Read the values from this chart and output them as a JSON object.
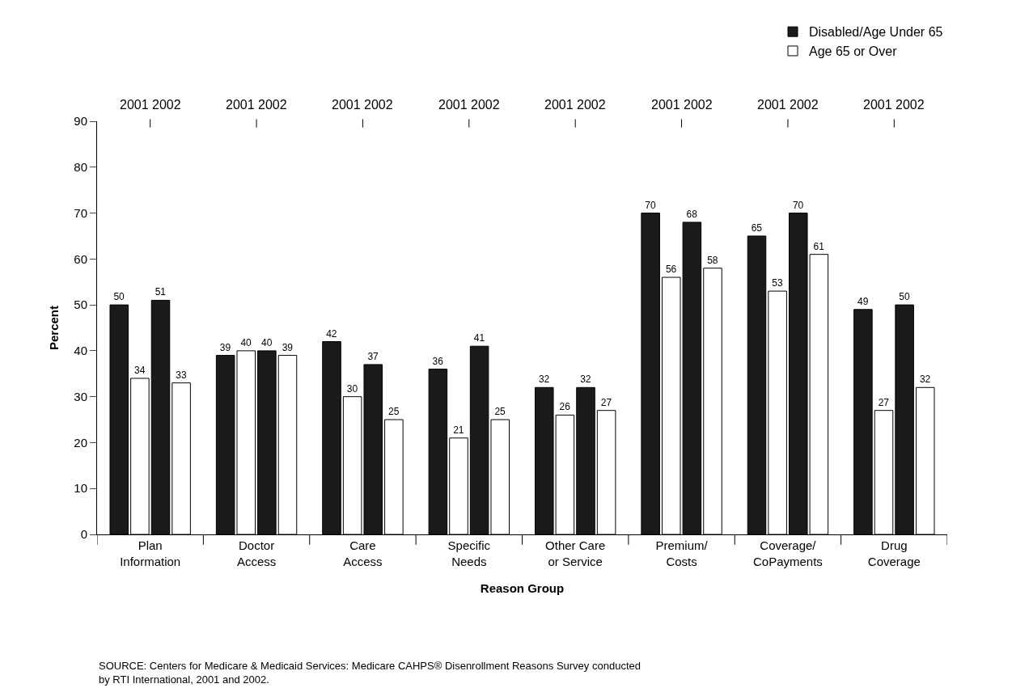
{
  "chart_data": {
    "type": "bar",
    "xlabel": "Reason Group",
    "ylabel": "Percent",
    "categories": [
      "Plan\nInformation",
      "Doctor\nAccess",
      "Care\nAccess",
      "Specific\nNeeds",
      "Other Care\nor Service",
      "Premium/\nCosts",
      "Coverage/\nCoPayments",
      "Drug\nCoverage"
    ],
    "series": [
      {
        "name": "Disabled/Age Under 65",
        "color": "#1a1a1a",
        "values": [
          50,
          39,
          42,
          36,
          32,
          70,
          65,
          49
        ],
        "value_labels": [
          "50",
          "39",
          "42",
          "36",
          "32",
          "70",
          "65",
          "49"
        ]
      },
      {
        "name": "Age 65 or Over",
        "color": "#ffffff",
        "values": [
          34,
          40,
          30,
          21,
          26,
          56,
          53,
          27
        ],
        "value_labels": [
          "34",
          "40",
          "30",
          "21",
          "26",
          "56",
          "53",
          "27"
        ]
      },
      {
        "color": "#1a1a1a",
        "values": [
          51,
          40,
          37,
          41,
          32,
          68,
          70,
          50
        ],
        "value_labels": [
          "51",
          "40",
          "37",
          "41",
          "32",
          "68",
          "70",
          "50"
        ]
      },
      {
        "color": "#ffffff",
        "values": [
          33,
          39,
          25,
          25,
          27,
          58,
          61,
          32
        ],
        "value_labels": [
          "33",
          "39",
          "25",
          "25",
          "27",
          "58",
          "61",
          "32"
        ]
      }
    ],
    "ylim": [
      0,
      90
    ],
    "yticks": [
      0,
      10,
      20,
      30,
      40,
      50,
      60,
      70,
      80,
      90
    ],
    "legend": "top right",
    "annotations": [
      "2001 2002",
      "2001 2002",
      "2001 2002",
      "2001 2002",
      "2001 2002",
      "2001 2002",
      "2001 2002",
      "2001 2002",
      "SOURCE: Centers for Medicare & Medicaid Services: Medicare CAHPS® Disenrollment Reasons Survey conducted\nby RTI International, 2001 and 2002."
    ]
  }
}
